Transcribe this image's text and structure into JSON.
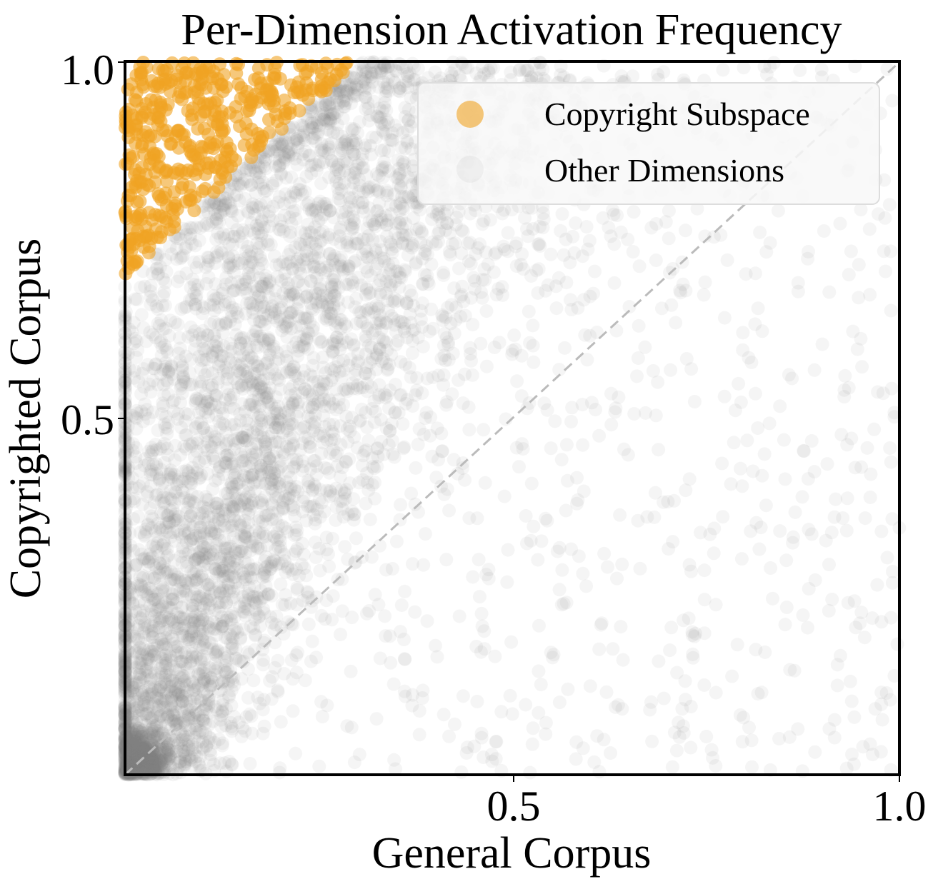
{
  "chart_data": {
    "type": "scatter",
    "title": "Per-Dimension Activation Frequency",
    "xlabel": "General Corpus",
    "ylabel": "Copyrighted Corpus",
    "xlim": [
      0.0,
      1.0
    ],
    "ylim": [
      0.0,
      1.0
    ],
    "x_ticks": [
      0.5,
      1.0
    ],
    "x_tick_labels": [
      "0.5",
      "1.0"
    ],
    "y_ticks": [
      0.5,
      1.0
    ],
    "y_tick_labels": [
      "0.5",
      "1.0"
    ],
    "grid": false,
    "legend_position": "top-right",
    "reference_line": {
      "style": "dashed",
      "color": "#bbbbbb",
      "from": [
        0.0,
        0.0
      ],
      "to": [
        1.0,
        1.0
      ]
    },
    "series": [
      {
        "name": "Copyright Subspace",
        "color": "#f0a323",
        "alpha": 0.6,
        "estimated_count": 430,
        "region": "general corpus 0.0-0.31, copyrighted corpus 0.70-1.0 (upper-left wedge, y - x >= ~0.7)",
        "sample_points": [
          [
            0.01,
            0.99
          ],
          [
            0.03,
            0.97
          ],
          [
            0.05,
            0.95
          ],
          [
            0.02,
            0.9
          ],
          [
            0.08,
            0.93
          ],
          [
            0.12,
            0.96
          ],
          [
            0.15,
            0.92
          ],
          [
            0.18,
            0.98
          ],
          [
            0.22,
            0.97
          ],
          [
            0.26,
            0.99
          ],
          [
            0.3,
            0.995
          ],
          [
            0.04,
            0.84
          ],
          [
            0.07,
            0.8
          ],
          [
            0.1,
            0.86
          ],
          [
            0.13,
            0.82
          ],
          [
            0.16,
            0.88
          ],
          [
            0.02,
            0.76
          ],
          [
            0.01,
            0.73
          ],
          [
            0.03,
            0.7
          ],
          [
            0.06,
            0.78
          ]
        ]
      },
      {
        "name": "Other Dimensions",
        "color": "#808080",
        "alpha": 0.08,
        "estimated_count": 6000,
        "region": "dense band from origin curving to upper-left, sparse scatter across the rest of the unit square",
        "sample_points": [
          [
            0.02,
            0.02
          ],
          [
            0.05,
            0.08
          ],
          [
            0.1,
            0.3
          ],
          [
            0.15,
            0.55
          ],
          [
            0.2,
            0.7
          ],
          [
            0.3,
            0.8
          ],
          [
            0.4,
            0.9
          ],
          [
            0.55,
            0.98
          ],
          [
            0.25,
            0.2
          ],
          [
            0.5,
            0.45
          ],
          [
            0.7,
            0.6
          ],
          [
            0.8,
            0.25
          ],
          [
            0.95,
            0.1
          ],
          [
            0.6,
            0.05
          ],
          [
            0.9,
            0.95
          ]
        ]
      }
    ]
  }
}
